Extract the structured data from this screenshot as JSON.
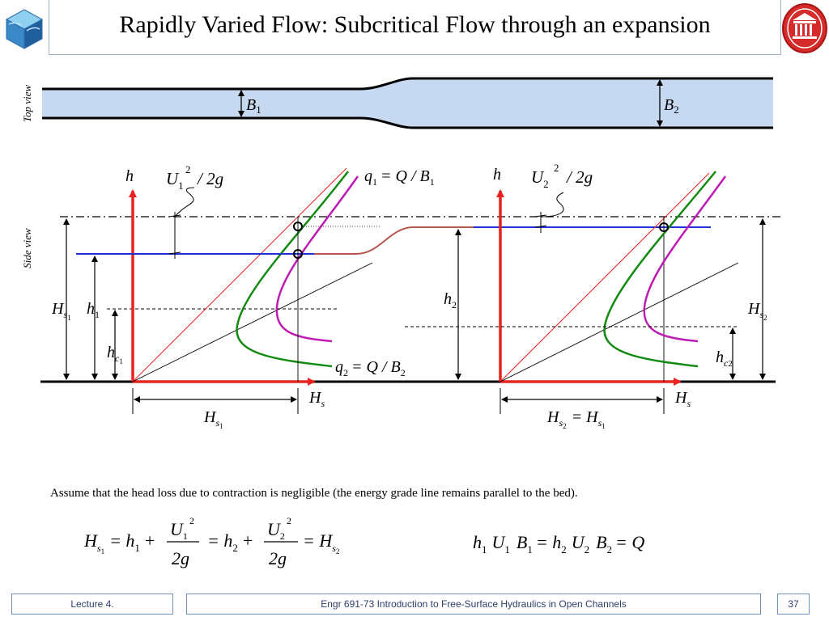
{
  "header": {
    "title": "Rapidly Varied Flow: Subcritical Flow through an expansion"
  },
  "top_view": {
    "side_label": "Top view",
    "label_b1": "B",
    "label_b1_sub": "1",
    "label_b2": "B",
    "label_b2_sub": "2"
  },
  "side_view": {
    "side_label": "Side view",
    "left": {
      "axis_h": "h",
      "velocity_head": "U",
      "velocity_head_sub": "1",
      "velocity_head_rest": "2",
      "velocity_head_tail": "/ 2g",
      "curve_label_q1": "q",
      "curve_label_q1_sub": "1",
      "curve_label_q1_rest": "= Q / B",
      "curve_label_q1_rest_sub": "1",
      "curve_label_q2": "q",
      "curve_label_q2_sub": "2",
      "curve_label_q2_rest": "= Q / B",
      "curve_label_q2_rest_sub": "2",
      "label_Hs1": "H",
      "label_Hs1_sub": "s",
      "label_Hs1_subsub": "1",
      "label_h1": "h",
      "label_h1_sub": "1",
      "label_hc1": "h",
      "label_hc1_sub": "c",
      "label_hc1_subsub": "1",
      "axis_Hs": "H",
      "axis_Hs_sub": "s",
      "bottom_Hs1": "H",
      "bottom_Hs1_sub": "s",
      "bottom_Hs1_subsub": "1"
    },
    "middle": {
      "label_h2": "h",
      "label_h2_sub": "2"
    },
    "right": {
      "axis_h": "h",
      "velocity_head": "U",
      "velocity_head_sub": "2",
      "velocity_head_rest": "2",
      "velocity_head_tail": "/ 2g",
      "label_Hs2": "H",
      "label_Hs2_sub": "s",
      "label_Hs2_subsub": "2",
      "label_hc2": "h",
      "label_hc2_sub": "c",
      "label_hc2_subsub": "2",
      "axis_Hs": "H",
      "axis_Hs_sub": "s",
      "bottom_eq_a": "H",
      "bottom_eq_a_sub": "s",
      "bottom_eq_a_subsub": "2",
      "bottom_eq_mid": "= H",
      "bottom_eq_b_sub": "s",
      "bottom_eq_b_subsub": "1"
    }
  },
  "note": "Assume that the head loss due to contraction is negligible (the energy grade line remains parallel to the bed).",
  "equation_1": {
    "lhs": "H",
    "lhs_sub": "s",
    "lhs_subsub": "1",
    "t1": "= h",
    "t1_sub": "1",
    "plus1": "+",
    "num1": "U",
    "num1_sub": "1",
    "num1_sup": "2",
    "den1": "2g",
    "t2": "= h",
    "t2_sub": "2",
    "plus2": "+",
    "num2": "U",
    "num2_sub": "2",
    "num2_sup": "2",
    "den2": "2g",
    "t3": "= H",
    "t3_sub": "s",
    "t3_subsub": "2"
  },
  "equation_2": {
    "a": "h",
    "a_sub": "1",
    "b": "U",
    "b_sub": "1",
    "c": "B",
    "c_sub": "1",
    "eq1": "= h",
    "eq1_sub": "2",
    "d": "U",
    "d_sub": "2",
    "e": "B",
    "e_sub": "2",
    "eq2": "= Q"
  },
  "footer": {
    "lecture": "Lecture 4.",
    "course": "Engr 691-73 Introduction to Free-Surface Hydraulics in Open Channels",
    "page": "37"
  },
  "colors": {
    "water": "#c7d9f1",
    "red_axis": "#e8231f",
    "blue_surface": "#1f2fd6",
    "green_curve": "#138a12",
    "magenta_curve": "#c01ab4",
    "transition": "#b5574f",
    "frame": "#9db3d6"
  }
}
